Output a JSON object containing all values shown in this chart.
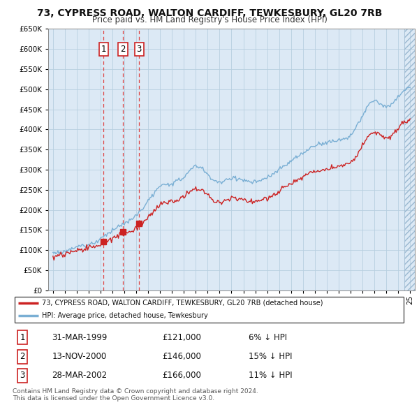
{
  "title": "73, CYPRESS ROAD, WALTON CARDIFF, TEWKESBURY, GL20 7RB",
  "subtitle": "Price paid vs. HM Land Registry's House Price Index (HPI)",
  "legend_line1": "73, CYPRESS ROAD, WALTON CARDIFF, TEWKESBURY, GL20 7RB (detached house)",
  "legend_line2": "HPI: Average price, detached house, Tewkesbury",
  "footer1": "Contains HM Land Registry data © Crown copyright and database right 2024.",
  "footer2": "This data is licensed under the Open Government Licence v3.0.",
  "transactions": [
    {
      "num": "1",
      "date": "31-MAR-1999",
      "price": "£121,000",
      "change": "6% ↓ HPI",
      "year": 1999.25,
      "price_val": 121000
    },
    {
      "num": "2",
      "date": "13-NOV-2000",
      "price": "£146,000",
      "change": "15% ↓ HPI",
      "year": 2000.87,
      "price_val": 146000
    },
    {
      "num": "3",
      "date": "28-MAR-2002",
      "price": "£166,000",
      "change": "11% ↓ HPI",
      "year": 2002.24,
      "price_val": 166000
    }
  ],
  "ylim": [
    0,
    650000
  ],
  "yticks": [
    0,
    50000,
    100000,
    150000,
    200000,
    250000,
    300000,
    350000,
    400000,
    450000,
    500000,
    550000,
    600000,
    650000
  ],
  "xlim_start": 1994.6,
  "xlim_end": 2025.4,
  "xtick_years": [
    1995,
    1996,
    1997,
    1998,
    1999,
    2000,
    2001,
    2002,
    2003,
    2004,
    2005,
    2006,
    2007,
    2008,
    2009,
    2010,
    2011,
    2012,
    2013,
    2014,
    2015,
    2016,
    2017,
    2018,
    2019,
    2020,
    2021,
    2022,
    2023,
    2024,
    2025
  ],
  "property_color": "#cc2222",
  "hpi_color": "#7aafd4",
  "background_color": "#ffffff",
  "chart_bg": "#dce9f5",
  "grid_color": "#b8cfe0"
}
